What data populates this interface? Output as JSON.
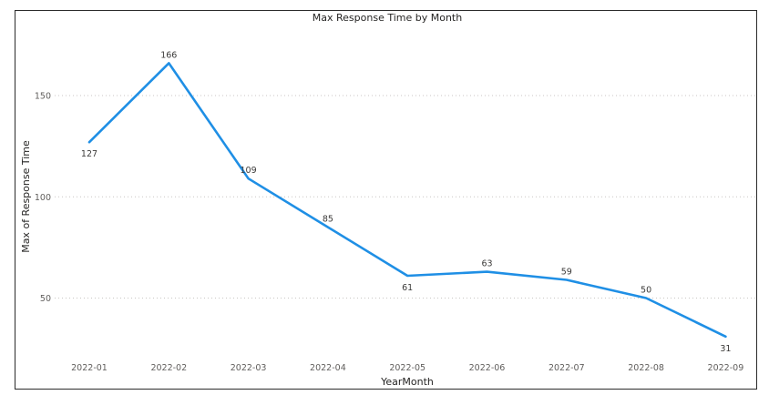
{
  "chart_data": {
    "type": "line",
    "title": "Max Response Time by Month",
    "xlabel": "YearMonth",
    "ylabel": "Max of Response Time",
    "categories": [
      "2022-01",
      "2022-02",
      "2022-03",
      "2022-04",
      "2022-05",
      "2022-06",
      "2022-07",
      "2022-08",
      "2022-09"
    ],
    "values": [
      127,
      166,
      109,
      85,
      61,
      63,
      59,
      50,
      31
    ],
    "yticks": [
      50,
      100,
      150
    ],
    "ylim": [
      20,
      180
    ],
    "grid": true,
    "line_color": "#1f8fe5"
  }
}
